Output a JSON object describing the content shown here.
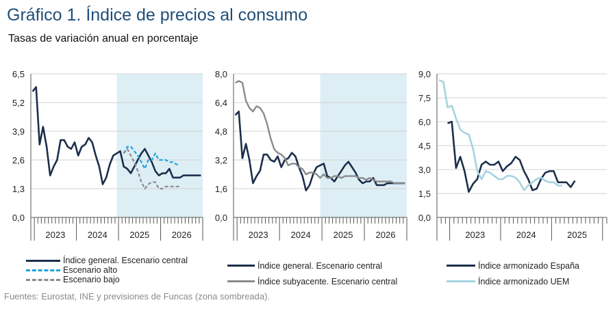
{
  "header": {
    "title_num": "Gráfico 1.",
    "title_text": "Índice de precios al consumo",
    "subtitle": "Tasas de variación anual en porcentaje"
  },
  "source": "Fuentes: Eurostat, INE y previsiones de Funcas (zona sombreada).",
  "colors": {
    "navy": "#1b2e4b",
    "cyan": "#1aa3e0",
    "gray": "#8a8a8a",
    "lightblue": "#a6d3e0",
    "shade": "#deeef5",
    "grid": "#d0d0d0"
  },
  "chart_data": [
    {
      "type": "line",
      "ylim": [
        0,
        6.5
      ],
      "yticks": [
        "0,0",
        "1,3",
        "2,6",
        "3,9",
        "5,2",
        "6,5"
      ],
      "x_start": "2022-12",
      "x_end": "2026-12",
      "year_labels": [
        "2023",
        "2024",
        "2025",
        "2026"
      ],
      "shade_from": "2024-12",
      "series": [
        {
          "name": "Índice general. Escenario central",
          "style": "navy",
          "start": "2022-12",
          "values": [
            5.7,
            5.9,
            3.3,
            4.1,
            3.2,
            1.9,
            2.3,
            2.6,
            3.5,
            3.5,
            3.2,
            3.1,
            3.4,
            2.8,
            3.2,
            3.3,
            3.6,
            3.4,
            2.8,
            2.3,
            1.5,
            1.8,
            2.4,
            2.8,
            2.9,
            3.0,
            2.3,
            2.2,
            2.0,
            2.3,
            2.6,
            2.9,
            3.1,
            2.8,
            2.5,
            2.1,
            1.9,
            2.0,
            2.0,
            2.2,
            1.8,
            1.8,
            1.8,
            1.9,
            1.9,
            1.9,
            1.9,
            1.9,
            1.9
          ]
        },
        {
          "name": "Escenario alto",
          "style": "cyan-dash",
          "start": "2025-02",
          "values": [
            2.9,
            3.2,
            3.2,
            3.0,
            2.8,
            2.5,
            2.2,
            2.6,
            2.6,
            2.9,
            2.6,
            2.6,
            2.6,
            2.5,
            2.5,
            2.4,
            2.4
          ]
        },
        {
          "name": "Escenario bajo",
          "style": "gray-dash",
          "start": "2025-02",
          "values": [
            2.9,
            3.1,
            2.8,
            2.5,
            2.1,
            1.6,
            1.3,
            1.5,
            1.6,
            1.6,
            1.3,
            1.3,
            1.4,
            1.4,
            1.4,
            1.4,
            1.4
          ]
        }
      ]
    },
    {
      "type": "line",
      "ylim": [
        0,
        8.0
      ],
      "yticks": [
        "0,0",
        "1,6",
        "3,2",
        "4,8",
        "6,4",
        "8,0"
      ],
      "x_start": "2022-12",
      "x_end": "2026-12",
      "year_labels": [
        "2023",
        "2024",
        "2025",
        "2026"
      ],
      "shade_from": "2024-12",
      "series": [
        {
          "name": "Índice general. Escenario central",
          "style": "navy",
          "start": "2022-12",
          "values": [
            5.7,
            5.9,
            3.3,
            4.1,
            3.2,
            1.9,
            2.3,
            2.6,
            3.5,
            3.5,
            3.2,
            3.1,
            3.4,
            2.8,
            3.2,
            3.3,
            3.6,
            3.4,
            2.8,
            2.3,
            1.5,
            1.8,
            2.4,
            2.8,
            2.9,
            3.0,
            2.3,
            2.2,
            2.0,
            2.3,
            2.6,
            2.9,
            3.1,
            2.8,
            2.5,
            2.1,
            1.9,
            2.0,
            2.0,
            2.2,
            1.8,
            1.8,
            1.8,
            1.9,
            1.9,
            1.9,
            1.9,
            1.9,
            1.9
          ]
        },
        {
          "name": "Índice subyacente. Escenario central",
          "style": "gray",
          "start": "2022-12",
          "values": [
            7.5,
            7.6,
            7.5,
            6.5,
            6.1,
            5.9,
            6.2,
            6.1,
            5.8,
            5.2,
            4.4,
            3.8,
            3.6,
            3.5,
            3.3,
            2.9,
            3.0,
            3.0,
            2.8,
            2.7,
            2.4,
            2.5,
            2.5,
            2.4,
            2.2,
            2.4,
            2.2,
            2.2,
            2.3,
            2.3,
            2.2,
            2.3,
            2.3,
            2.3,
            2.3,
            2.2,
            2.2,
            2.1,
            2.2,
            2.1,
            2.0,
            2.0,
            2.0,
            2.0,
            2.0,
            1.9,
            1.9,
            1.9,
            1.9
          ]
        }
      ]
    },
    {
      "type": "line",
      "ylim": [
        0,
        9.0
      ],
      "yticks": [
        "0,0",
        "1,5",
        "3,0",
        "4,5",
        "6,0",
        "7,5",
        "9,0"
      ],
      "x_start": "2022-10",
      "x_end": "2026-01",
      "year_labels": [
        "2023",
        "2024",
        "2025"
      ],
      "series": [
        {
          "name": "Índice armonizado España",
          "style": "navy",
          "start": "2022-12",
          "values": [
            5.9,
            6.0,
            3.1,
            3.8,
            2.9,
            1.6,
            2.1,
            2.4,
            3.3,
            3.5,
            3.3,
            3.3,
            3.5,
            2.9,
            3.2,
            3.4,
            3.8,
            3.6,
            2.9,
            2.4,
            1.7,
            1.8,
            2.4,
            2.8,
            2.9,
            2.9,
            2.2,
            2.2,
            2.2,
            1.9,
            2.3
          ]
        },
        {
          "name": "Índice armonizado UEM",
          "style": "lightblue",
          "start": "2022-10",
          "values": [
            8.6,
            8.5,
            6.9,
            7.0,
            6.2,
            5.5,
            5.3,
            5.2,
            4.3,
            2.9,
            2.4,
            2.9,
            2.8,
            2.6,
            2.4,
            2.4,
            2.6,
            2.6,
            2.5,
            2.2,
            1.7,
            2.0,
            2.2,
            2.4,
            2.5,
            2.3,
            2.2,
            2.2,
            2.0,
            2.0
          ]
        }
      ]
    }
  ],
  "legends": [
    [
      "Índice general. Escenario central",
      "Escenario alto",
      "Escenario bajo"
    ],
    [
      "Índice general. Escenario central",
      "Índice subyacente. Escenario central"
    ],
    [
      "Índice armonizado España",
      "Índice armonizado UEM"
    ]
  ]
}
